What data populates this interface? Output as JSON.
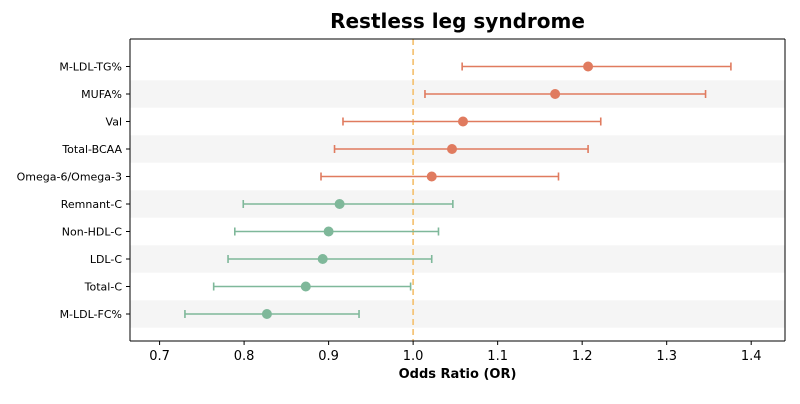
{
  "chart_data": {
    "type": "forest",
    "title": "Restless leg syndrome",
    "xlabel": "Odds Ratio (OR)",
    "ylabel": "",
    "xlim": [
      0.665,
      1.44
    ],
    "xticks": [
      "0.7",
      "0.8",
      "0.9",
      "1.0",
      "1.1",
      "1.2",
      "1.3",
      "1.4"
    ],
    "reference_line": 1.0,
    "reference_color": "#f5c57a",
    "grid": false,
    "row_shading": "alternating",
    "colors": {
      "risk": "#e07b5f",
      "protective": "#7fb89a"
    },
    "items": [
      {
        "label": "M-LDL-TG%",
        "or": 1.207,
        "lo": 1.058,
        "hi": 1.376,
        "group": "risk"
      },
      {
        "label": "MUFA%",
        "or": 1.168,
        "lo": 1.014,
        "hi": 1.346,
        "group": "risk"
      },
      {
        "label": "Val",
        "or": 1.059,
        "lo": 0.917,
        "hi": 1.222,
        "group": "risk"
      },
      {
        "label": "Total-BCAA",
        "or": 1.046,
        "lo": 0.907,
        "hi": 1.207,
        "group": "risk"
      },
      {
        "label": "Omega-6/Omega-3",
        "or": 1.022,
        "lo": 0.891,
        "hi": 1.172,
        "group": "risk"
      },
      {
        "label": "Remnant-C",
        "or": 0.913,
        "lo": 0.799,
        "hi": 1.047,
        "group": "protective"
      },
      {
        "label": "Non-HDL-C",
        "or": 0.9,
        "lo": 0.789,
        "hi": 1.03,
        "group": "protective"
      },
      {
        "label": "LDL-C",
        "or": 0.893,
        "lo": 0.781,
        "hi": 1.022,
        "group": "protective"
      },
      {
        "label": "Total-C",
        "or": 0.873,
        "lo": 0.764,
        "hi": 0.997,
        "group": "protective"
      },
      {
        "label": "M-LDL-FC%",
        "or": 0.827,
        "lo": 0.73,
        "hi": 0.936,
        "group": "protective"
      }
    ]
  }
}
